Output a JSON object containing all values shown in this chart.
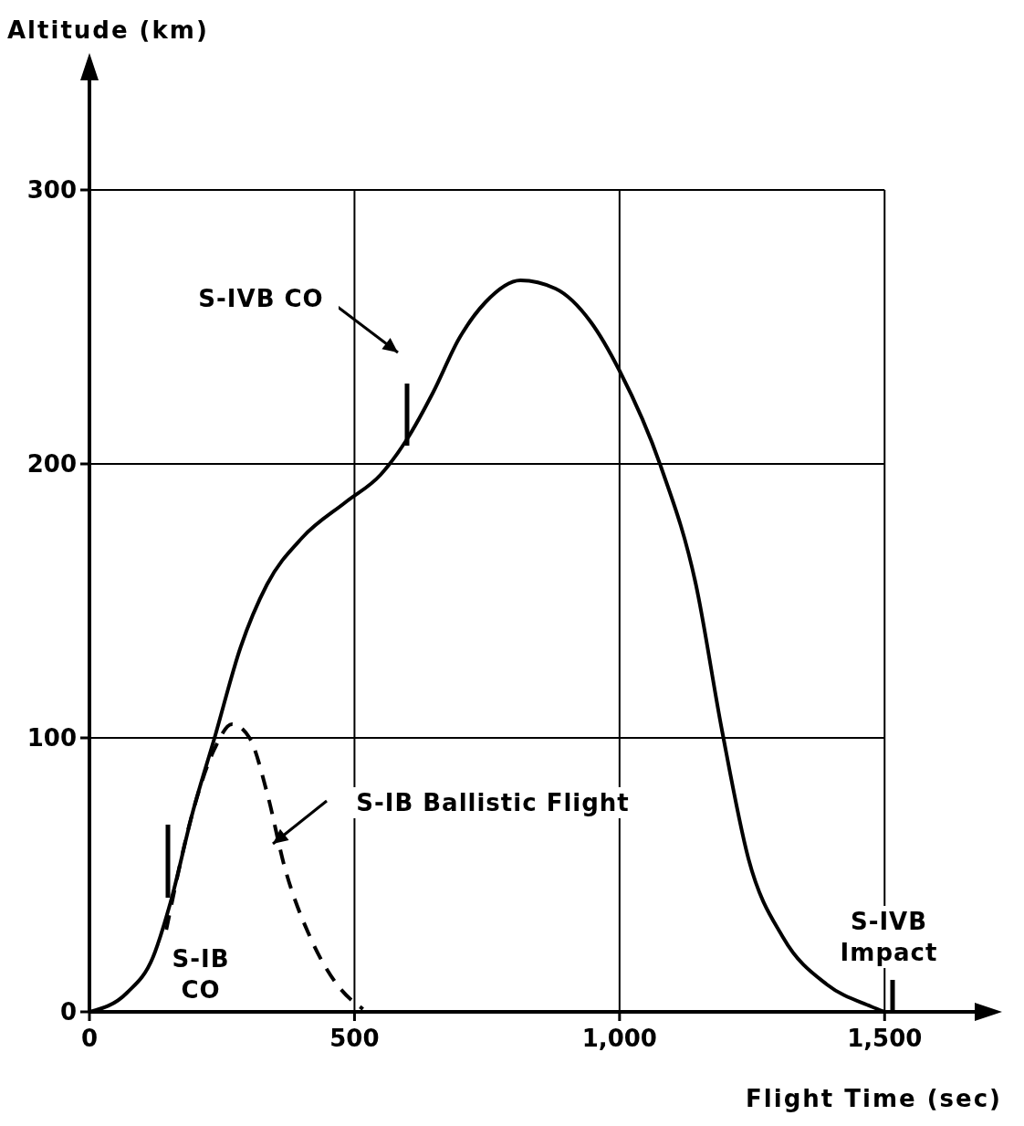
{
  "chart_data": {
    "type": "line",
    "xlabel": "Flight Time (sec)",
    "ylabel": "Altitude (km)",
    "xlim": [
      0,
      1670
    ],
    "ylim": [
      0,
      340
    ],
    "xticks": [
      0,
      500,
      {
        "value": 1000,
        "label": "1,000"
      },
      {
        "value": 1500,
        "label": "1,500"
      }
    ],
    "yticks": [
      0,
      100,
      200,
      300
    ],
    "grid": true,
    "marker": "none",
    "series": [
      {
        "color": "#000000",
        "line_style": "solid",
        "x": [
          0,
          71,
          120,
          153,
          195,
          236,
          285,
          335,
          401,
          483,
          549,
          599,
          648,
          698,
          747,
          813,
          879,
          945,
          1000,
          1078,
          1144,
          1193,
          1243,
          1309,
          1391,
          1474,
          1500
        ],
        "values": [
          0,
          7,
          20,
          40,
          73,
          100,
          133,
          156,
          173,
          186,
          196,
          209,
          226,
          246,
          259,
          267,
          264,
          252,
          234,
          199,
          156,
          103,
          56,
          27,
          10,
          2,
          0
        ]
      },
      {
        "color": "#000000",
        "line_style": "dashed",
        "x": [
          145,
          195,
          236,
          269,
          302,
          335,
          368,
          417,
          467,
          516
        ],
        "values": [
          30,
          73,
          96,
          105,
          100,
          80,
          53,
          27,
          10,
          1
        ]
      }
    ],
    "annotations": [
      "S-IVB CO",
      "S-IB Ballistic Flight",
      "S-IB CO",
      "S-IVB Impact"
    ]
  }
}
